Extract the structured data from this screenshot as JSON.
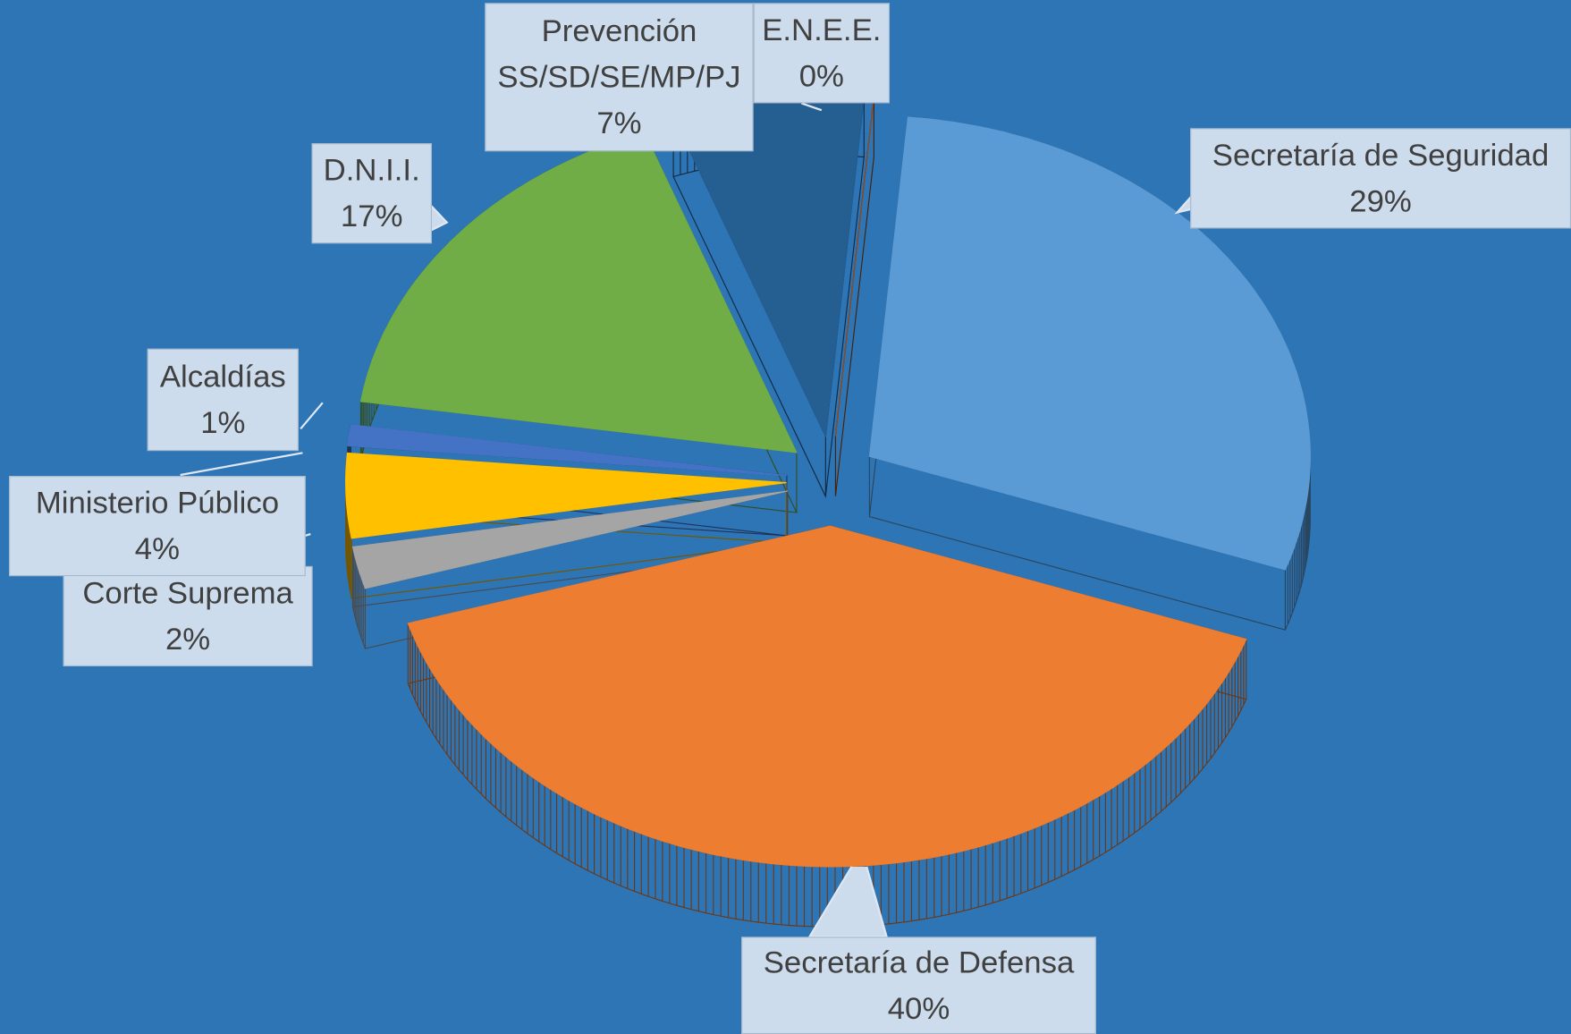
{
  "chart_data": {
    "type": "pie",
    "categories": [
      "Secretaría de Seguridad",
      "Secretaría de Defensa",
      "Corte Suprema",
      "Ministerio Público",
      "Alcaldías",
      "D.N.I.I.",
      "Prevención SS/SD/SE/MP/PJ",
      "E.N.E.E."
    ],
    "values": [
      29,
      40,
      2,
      4,
      1,
      17,
      7,
      0
    ],
    "value_labels": [
      "29%",
      "40%",
      "2%",
      "4%",
      "1%",
      "17%",
      "7%",
      "0%"
    ],
    "colors": [
      "#5b9bd5",
      "#ed7d31",
      "#a5a5a5",
      "#ffc000",
      "#4472c4",
      "#70ad47",
      "#255e91",
      "#9e480e"
    ]
  }
}
